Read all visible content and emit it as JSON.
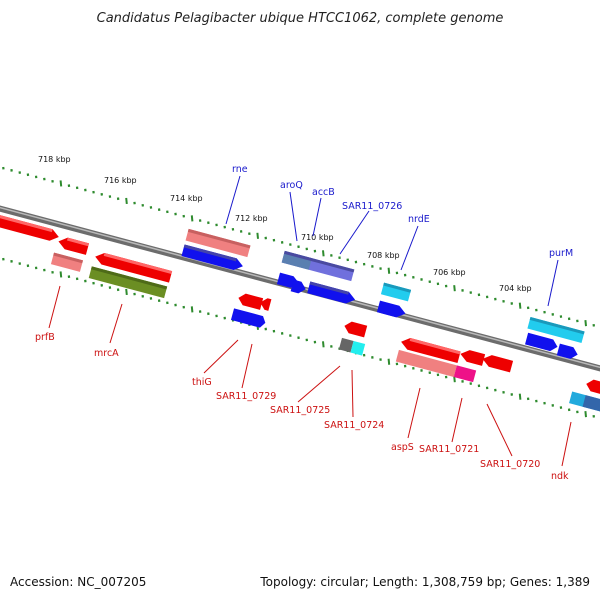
{
  "title": "Candidatus Pelagibacter ubique HTCC1062, complete genome",
  "footer": {
    "accession": "Accession: NC_007205",
    "info": "Topology: circular; Length: 1,308,759 bp; Genes: 1,389"
  },
  "colors": {
    "backbone": "#7f7f7f",
    "ruler_dot": "#2e8b2e",
    "forward_label": "#1a1acc",
    "reverse_label": "#cc1111"
  },
  "ruler_labels": [
    "718 kbp",
    "716 kbp",
    "714 kbp",
    "712 kbp",
    "710 kbp",
    "708 kbp",
    "706 kbp",
    "704 kbp"
  ],
  "forward_genes": [
    "rne",
    "aroQ",
    "accB",
    "SAR11_0726",
    "nrdE",
    "purM"
  ],
  "reverse_genes": [
    "prfB",
    "mrcA",
    "thiG",
    "SAR11_0729",
    "SAR11_0725",
    "SAR11_0724",
    "aspS",
    "SAR11_0721",
    "SAR11_0720",
    "ndk"
  ]
}
